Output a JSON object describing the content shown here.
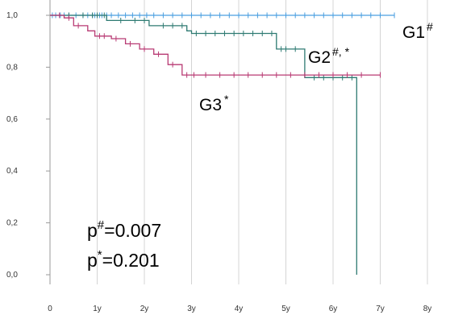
{
  "chart_data": {
    "type": "line",
    "title": "",
    "xlabel": "",
    "ylabel": "",
    "xlim": [
      0,
      8
    ],
    "ylim": [
      0,
      1
    ],
    "x_ticks": [
      {
        "value": 0,
        "label": "0"
      },
      {
        "value": 1,
        "label": "1y"
      },
      {
        "value": 2,
        "label": "2y"
      },
      {
        "value": 3,
        "label": "3y"
      },
      {
        "value": 4,
        "label": "4y"
      },
      {
        "value": 5,
        "label": "5y"
      },
      {
        "value": 6,
        "label": "6y"
      },
      {
        "value": 7,
        "label": "7y"
      },
      {
        "value": 8,
        "label": "8y"
      }
    ],
    "y_ticks": [
      {
        "value": 0,
        "label": "0,0"
      },
      {
        "value": 0.2,
        "label": "0,2"
      },
      {
        "value": 0.4,
        "label": "0,4"
      },
      {
        "value": 0.6,
        "label": "0,6"
      },
      {
        "value": 0.8,
        "label": "0,8"
      },
      {
        "value": 1.0,
        "label": "1,0"
      }
    ],
    "grid": "vertical",
    "series": [
      {
        "name": "G1",
        "name_sup": "#",
        "color": "#4a9fe0",
        "steps": [
          [
            0,
            1.0
          ],
          [
            7.3,
            1.0
          ]
        ],
        "censored": [
          0.05,
          0.12,
          0.22,
          0.3,
          0.4,
          0.55,
          0.7,
          0.8,
          0.9,
          0.95,
          1.0,
          1.05,
          1.1,
          1.2,
          1.3,
          1.45,
          1.6,
          1.75,
          1.9,
          2.05,
          2.2,
          2.4,
          2.6,
          2.8,
          3.0,
          3.2,
          3.4,
          3.6,
          3.8,
          4.0,
          4.2,
          4.4,
          4.6,
          4.8,
          5.0,
          5.2,
          5.4,
          5.6,
          5.8,
          6.0,
          6.2,
          6.4,
          6.6,
          6.8,
          7.0,
          7.3
        ]
      },
      {
        "name": "G2",
        "name_sup": "#, *",
        "color": "#2e7a72",
        "steps": [
          [
            0,
            1.0
          ],
          [
            1.2,
            1.0
          ],
          [
            1.2,
            0.98
          ],
          [
            2.1,
            0.98
          ],
          [
            2.1,
            0.96
          ],
          [
            2.9,
            0.96
          ],
          [
            2.9,
            0.94
          ],
          [
            3.0,
            0.94
          ],
          [
            3.0,
            0.93
          ],
          [
            4.8,
            0.93
          ],
          [
            4.8,
            0.87
          ],
          [
            5.4,
            0.87
          ],
          [
            5.4,
            0.76
          ],
          [
            6.5,
            0.76
          ],
          [
            6.5,
            0.0
          ]
        ],
        "censored": [
          0.4,
          0.7,
          0.9,
          1.0,
          1.15,
          1.5,
          1.8,
          2.0,
          2.4,
          2.6,
          2.8,
          3.1,
          3.3,
          3.5,
          3.7,
          3.9,
          4.1,
          4.3,
          4.5,
          4.7,
          4.9,
          5.0,
          5.2,
          5.6,
          5.8,
          6.0,
          6.2,
          6.4
        ]
      },
      {
        "name": "G3",
        "name_sup": "*",
        "color": "#b83a73",
        "steps": [
          [
            0,
            1.0
          ],
          [
            0.3,
            1.0
          ],
          [
            0.3,
            0.99
          ],
          [
            0.5,
            0.99
          ],
          [
            0.5,
            0.96
          ],
          [
            0.8,
            0.96
          ],
          [
            0.8,
            0.94
          ],
          [
            0.95,
            0.94
          ],
          [
            0.95,
            0.92
          ],
          [
            1.3,
            0.92
          ],
          [
            1.3,
            0.91
          ],
          [
            1.6,
            0.91
          ],
          [
            1.6,
            0.89
          ],
          [
            1.9,
            0.89
          ],
          [
            1.9,
            0.87
          ],
          [
            2.2,
            0.87
          ],
          [
            2.2,
            0.85
          ],
          [
            2.5,
            0.85
          ],
          [
            2.5,
            0.81
          ],
          [
            2.8,
            0.81
          ],
          [
            2.8,
            0.77
          ],
          [
            7.0,
            0.77
          ]
        ],
        "censored": [
          0.2,
          0.4,
          0.6,
          1.05,
          1.15,
          1.4,
          1.7,
          2.0,
          2.3,
          2.6,
          2.9,
          3.05,
          3.3,
          3.6,
          3.9,
          4.2,
          4.5,
          4.8,
          5.1,
          5.4,
          5.7,
          6.0,
          6.3,
          6.6,
          7.0
        ]
      }
    ],
    "annotations": [
      {
        "base": "p",
        "sup": "#",
        "text": "=0.007"
      },
      {
        "base": "p",
        "sup": "*",
        "text": "=0.201"
      }
    ]
  }
}
